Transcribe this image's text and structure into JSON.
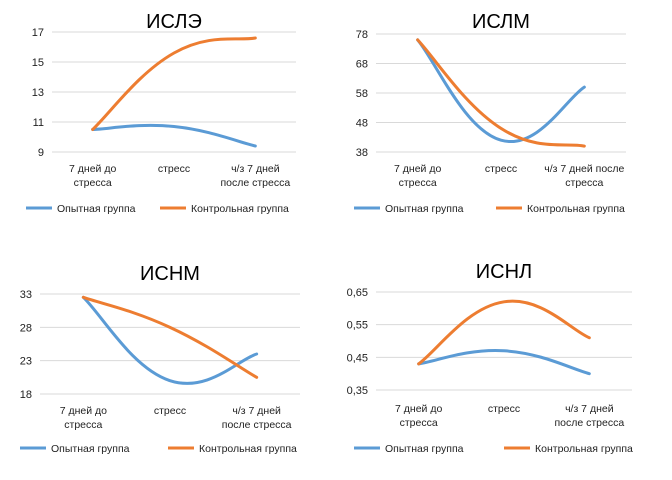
{
  "colors": {
    "experimental": "#5b9bd5",
    "control": "#ed7d31",
    "grid": "#d9d9d9"
  },
  "chart_data": [
    {
      "type": "line",
      "title": "ИСЛЭ",
      "categories": [
        [
          "7 дней до",
          "стресса"
        ],
        [
          "стресс"
        ],
        [
          "ч/з 7 дней",
          "после стресса"
        ]
      ],
      "yticks": [
        "9",
        "11",
        "13",
        "15",
        "17"
      ],
      "ylim": [
        9,
        17
      ],
      "legend_position": "bottom",
      "series": [
        {
          "name": "Опытная группа",
          "values": [
            10.5,
            10.7,
            9.4
          ]
        },
        {
          "name": "Контрольная группа",
          "values": [
            10.5,
            15.6,
            16.6
          ]
        }
      ]
    },
    {
      "type": "line",
      "title": "ИСЛМ",
      "categories": [
        [
          "7 дней до",
          "стресса"
        ],
        [
          "стресс"
        ],
        [
          "ч/з 7 дней после",
          "стресса"
        ]
      ],
      "yticks": [
        "38",
        "48",
        "58",
        "68",
        "78"
      ],
      "ylim": [
        38,
        78
      ],
      "legend_position": "bottom",
      "series": [
        {
          "name": "Опытная группа",
          "values": [
            76,
            42,
            60
          ]
        },
        {
          "name": "Контрольная группа",
          "values": [
            76,
            46,
            40
          ]
        }
      ]
    },
    {
      "type": "line",
      "title": "ИСНМ",
      "categories": [
        [
          "7 дней до",
          "стресса"
        ],
        [
          "стресс"
        ],
        [
          "ч/з 7 дней",
          "после стресса"
        ]
      ],
      "yticks": [
        "18",
        "23",
        "28",
        "33"
      ],
      "ylim": [
        18,
        33
      ],
      "legend_position": "bottom",
      "series": [
        {
          "name": "Опытная группа",
          "values": [
            32.5,
            20,
            24
          ]
        },
        {
          "name": "Контрольная группа",
          "values": [
            32.5,
            28,
            20.5
          ]
        }
      ]
    },
    {
      "type": "line",
      "title": "ИСНЛ",
      "categories": [
        [
          "7 дней до",
          "стресса"
        ],
        [
          "стресс"
        ],
        [
          "ч/з 7 дней",
          "после стресса"
        ]
      ],
      "yticks": [
        "0,35",
        "0,45",
        "0,55",
        "0,65"
      ],
      "ylim": [
        0.35,
        0.65
      ],
      "legend_position": "bottom",
      "series": [
        {
          "name": "Опытная группа",
          "values": [
            0.43,
            0.47,
            0.4
          ]
        },
        {
          "name": "Контрольная группа",
          "values": [
            0.43,
            0.62,
            0.51
          ]
        }
      ]
    }
  ]
}
